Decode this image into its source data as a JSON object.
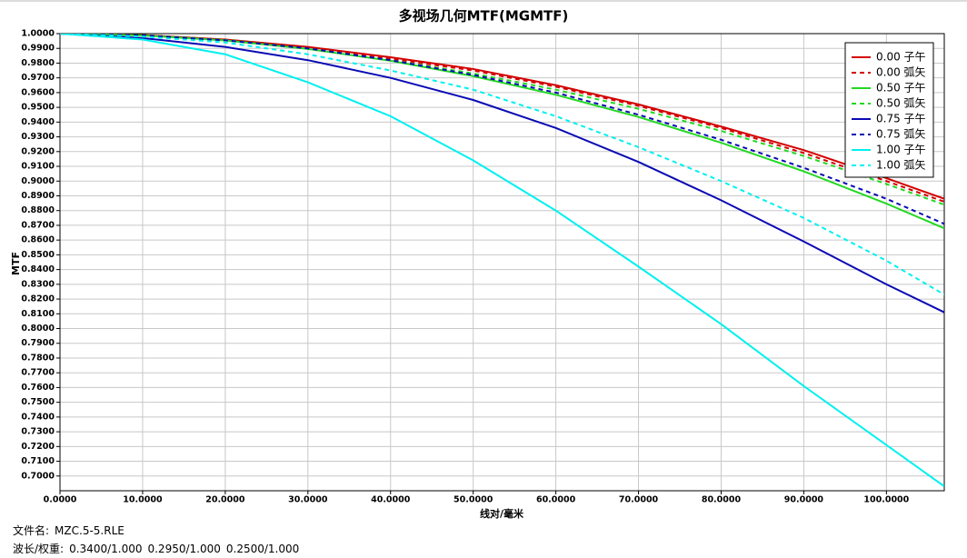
{
  "chart_data": {
    "type": "line",
    "title": "多视场几何MTF(MGMTF)",
    "xlabel": "线对/毫米",
    "ylabel": "MTF",
    "x": [
      0,
      10,
      20,
      30,
      40,
      50,
      60,
      70,
      80,
      90,
      100,
      107
    ],
    "xlim": [
      0,
      107
    ],
    "ylim": [
      0.69,
      1.0
    ],
    "xticks": [
      {
        "value": 0,
        "label": "0.0000"
      },
      {
        "value": 10,
        "label": "10.0000"
      },
      {
        "value": 20,
        "label": "20.0000"
      },
      {
        "value": 30,
        "label": "30.0000"
      },
      {
        "value": 40,
        "label": "40.0000"
      },
      {
        "value": 50,
        "label": "50.0000"
      },
      {
        "value": 60,
        "label": "60.0000"
      },
      {
        "value": 70,
        "label": "70.0000"
      },
      {
        "value": 80,
        "label": "80.0000"
      },
      {
        "value": 90,
        "label": "90.0000"
      },
      {
        "value": 100,
        "label": "100.0000"
      }
    ],
    "yticks": [
      {
        "value": 0.7,
        "label": "0.7000"
      },
      {
        "value": 0.71,
        "label": "0.7100"
      },
      {
        "value": 0.72,
        "label": "0.7200"
      },
      {
        "value": 0.73,
        "label": "0.7300"
      },
      {
        "value": 0.74,
        "label": "0.7400"
      },
      {
        "value": 0.75,
        "label": "0.7500"
      },
      {
        "value": 0.76,
        "label": "0.7600"
      },
      {
        "value": 0.77,
        "label": "0.7700"
      },
      {
        "value": 0.78,
        "label": "0.7800"
      },
      {
        "value": 0.79,
        "label": "0.7900"
      },
      {
        "value": 0.8,
        "label": "0.8000"
      },
      {
        "value": 0.81,
        "label": "0.8100"
      },
      {
        "value": 0.82,
        "label": "0.8200"
      },
      {
        "value": 0.83,
        "label": "0.8300"
      },
      {
        "value": 0.84,
        "label": "0.8400"
      },
      {
        "value": 0.85,
        "label": "0.8500"
      },
      {
        "value": 0.86,
        "label": "0.8600"
      },
      {
        "value": 0.87,
        "label": "0.8700"
      },
      {
        "value": 0.88,
        "label": "0.8800"
      },
      {
        "value": 0.89,
        "label": "0.8900"
      },
      {
        "value": 0.9,
        "label": "0.9000"
      },
      {
        "value": 0.91,
        "label": "0.9100"
      },
      {
        "value": 0.92,
        "label": "0.9200"
      },
      {
        "value": 0.93,
        "label": "0.9300"
      },
      {
        "value": 0.94,
        "label": "0.9400"
      },
      {
        "value": 0.95,
        "label": "0.9500"
      },
      {
        "value": 0.96,
        "label": "0.9600"
      },
      {
        "value": 0.97,
        "label": "0.9700"
      },
      {
        "value": 0.98,
        "label": "0.9800"
      },
      {
        "value": 0.99,
        "label": "0.9900"
      },
      {
        "value": 1.0,
        "label": "1.0000"
      }
    ],
    "grid": true,
    "legend": "upper right",
    "series": [
      {
        "name": "0.00 子午",
        "color": "#d40000",
        "linestyle": "solid",
        "values": [
          1,
          0.999,
          0.996,
          0.991,
          0.984,
          0.976,
          0.965,
          0.952,
          0.937,
          0.921,
          0.902,
          0.888
        ]
      },
      {
        "name": "0.00 弧矢",
        "color": "#d40000",
        "linestyle": "dashed",
        "values": [
          1,
          0.999,
          0.996,
          0.99,
          0.983,
          0.975,
          0.964,
          0.951,
          0.936,
          0.919,
          0.9,
          0.886
        ]
      },
      {
        "name": "0.50 子午",
        "color": "#22d822",
        "linestyle": "solid",
        "values": [
          1,
          0.9988,
          0.9954,
          0.9896,
          0.9816,
          0.9712,
          0.9585,
          0.9435,
          0.926,
          0.9066,
          0.8847,
          0.868
        ]
      },
      {
        "name": "0.50 弧矢",
        "color": "#22d822",
        "linestyle": "dashed",
        "values": [
          1,
          0.999,
          0.9958,
          0.99,
          0.982,
          0.973,
          0.962,
          0.949,
          0.934,
          0.917,
          0.898,
          0.884
        ]
      },
      {
        "name": "0.75 子午",
        "color": "#0a0ab4",
        "linestyle": "solid",
        "values": [
          1,
          0.997,
          0.991,
          0.982,
          0.97,
          0.955,
          0.936,
          0.913,
          0.887,
          0.859,
          0.83,
          0.811
        ]
      },
      {
        "name": "0.75 弧矢",
        "color": "#0a0ab4",
        "linestyle": "dashed",
        "values": [
          1,
          0.9988,
          0.9955,
          0.99,
          0.982,
          0.972,
          0.96,
          0.945,
          0.928,
          0.909,
          0.888,
          0.871
        ]
      },
      {
        "name": "1.00 子午",
        "color": "#00f0f0",
        "linestyle": "solid",
        "values": [
          1,
          0.996,
          0.986,
          0.967,
          0.944,
          0.914,
          0.88,
          0.842,
          0.803,
          0.761,
          0.721,
          0.693
        ]
      },
      {
        "name": "1.00 弧矢",
        "color": "#00f0f0",
        "linestyle": "dashed",
        "values": [
          1,
          0.998,
          0.994,
          0.986,
          0.975,
          0.962,
          0.944,
          0.923,
          0.9,
          0.875,
          0.846,
          0.823
        ]
      }
    ]
  },
  "footer": {
    "file_label": "文件名:",
    "file": "MZC.5-5.RLE",
    "wave_label": "波长/权重:",
    "waves": [
      "0.3400/1.000",
      "0.2950/1.000",
      "0.2500/1.000"
    ]
  }
}
